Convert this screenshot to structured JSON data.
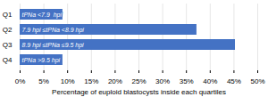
{
  "chart_data": {
    "type": "bar",
    "orientation": "horizontal",
    "categories": [
      "Q1",
      "Q2",
      "Q3",
      "Q4"
    ],
    "values": [
      0.09,
      0.372,
      0.453,
      0.09
    ],
    "annotations": [
      "tPNa <7.9  hpi",
      "7.9 hpi ≤tPNa <8.9 hpi",
      "8.9 hpi ≤tPNa ≤9.5 hpi",
      "tPNa >9.5 hpi"
    ],
    "color": "#4472c4",
    "xlabel": "Percentage of euploid blastocysts inside each quartiles",
    "xlim": [
      0,
      0.5
    ],
    "xticks": [
      {
        "value": 0.0,
        "label": "0%"
      },
      {
        "value": 0.05,
        "label": "5%"
      },
      {
        "value": 0.1,
        "label": "10%"
      },
      {
        "value": 0.15,
        "label": "15%"
      },
      {
        "value": 0.2,
        "label": "20%"
      },
      {
        "value": 0.25,
        "label": "25%"
      },
      {
        "value": 0.3,
        "label": "30%"
      },
      {
        "value": 0.35,
        "label": "35%"
      },
      {
        "value": 0.4,
        "label": "40%"
      },
      {
        "value": 0.45,
        "label": "45%"
      },
      {
        "value": 0.5,
        "label": "50%"
      }
    ],
    "grid": true
  }
}
